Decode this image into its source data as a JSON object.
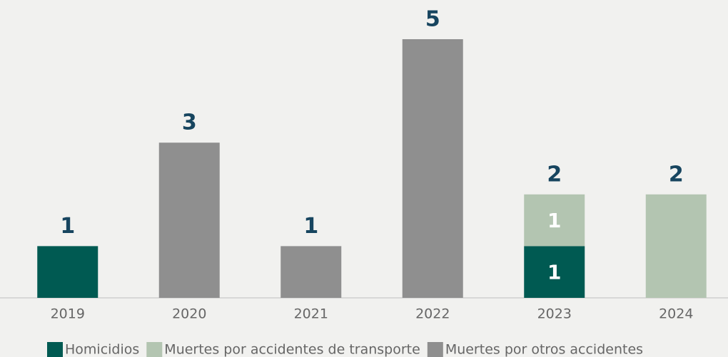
{
  "chart_data": {
    "type": "stacked-bar",
    "categories": [
      "2019",
      "2020",
      "2021",
      "2022",
      "2023",
      "2024"
    ],
    "series": [
      {
        "name": "Homicidios",
        "color": "#005a52",
        "values": [
          1,
          null,
          null,
          null,
          1,
          null
        ]
      },
      {
        "name": "Muertes por accidentes de transporte",
        "color": "#b3c5b1",
        "values": [
          null,
          null,
          null,
          null,
          1,
          2
        ]
      },
      {
        "name": "Muertes por otros accidentes",
        "color": "#8f8f8f",
        "values": [
          null,
          3,
          1,
          5,
          null,
          null
        ]
      }
    ],
    "totals": [
      1,
      3,
      1,
      5,
      2,
      2
    ],
    "ylim": [
      0,
      5
    ],
    "legend": "bottom"
  }
}
